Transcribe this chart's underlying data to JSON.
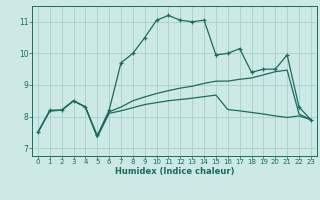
{
  "xlabel": "Humidex (Indice chaleur)",
  "background_color": "#cce9e5",
  "grid_color": "#aad4cf",
  "line_color": "#1a6b5e",
  "xlim": [
    -0.5,
    23.5
  ],
  "ylim": [
    6.75,
    11.5
  ],
  "xticks": [
    0,
    1,
    2,
    3,
    4,
    5,
    6,
    7,
    8,
    9,
    10,
    11,
    12,
    13,
    14,
    15,
    16,
    17,
    18,
    19,
    20,
    21,
    22,
    23
  ],
  "yticks": [
    7,
    8,
    9,
    10,
    11
  ],
  "series1_x": [
    0,
    1,
    2,
    3,
    4,
    5,
    6,
    7,
    8,
    9,
    10,
    11,
    12,
    13,
    14,
    15,
    16,
    17,
    18,
    19,
    20,
    21,
    22,
    23
  ],
  "series1_y": [
    7.5,
    8.2,
    8.2,
    8.5,
    8.3,
    7.4,
    8.2,
    9.7,
    10.0,
    10.5,
    11.05,
    11.2,
    11.05,
    11.0,
    11.05,
    9.95,
    10.0,
    10.15,
    9.4,
    9.5,
    9.5,
    9.95,
    8.3,
    7.9
  ],
  "series2_x": [
    0,
    1,
    2,
    3,
    4,
    5,
    6,
    7,
    8,
    9,
    10,
    11,
    12,
    13,
    14,
    15,
    16,
    17,
    18,
    19,
    20,
    21,
    22,
    23
  ],
  "series2_y": [
    7.5,
    8.18,
    8.2,
    8.5,
    8.3,
    7.35,
    8.15,
    8.3,
    8.5,
    8.62,
    8.73,
    8.82,
    8.9,
    8.96,
    9.05,
    9.12,
    9.12,
    9.18,
    9.22,
    9.32,
    9.42,
    9.47,
    8.08,
    7.9
  ],
  "series3_x": [
    0,
    1,
    2,
    3,
    4,
    5,
    6,
    7,
    8,
    9,
    10,
    11,
    12,
    13,
    14,
    15,
    16,
    17,
    18,
    19,
    20,
    21,
    22,
    23
  ],
  "series3_y": [
    7.5,
    8.18,
    8.2,
    8.5,
    8.3,
    7.35,
    8.1,
    8.18,
    8.28,
    8.38,
    8.44,
    8.5,
    8.54,
    8.58,
    8.63,
    8.68,
    8.22,
    8.18,
    8.13,
    8.08,
    8.02,
    7.97,
    8.02,
    7.9
  ]
}
